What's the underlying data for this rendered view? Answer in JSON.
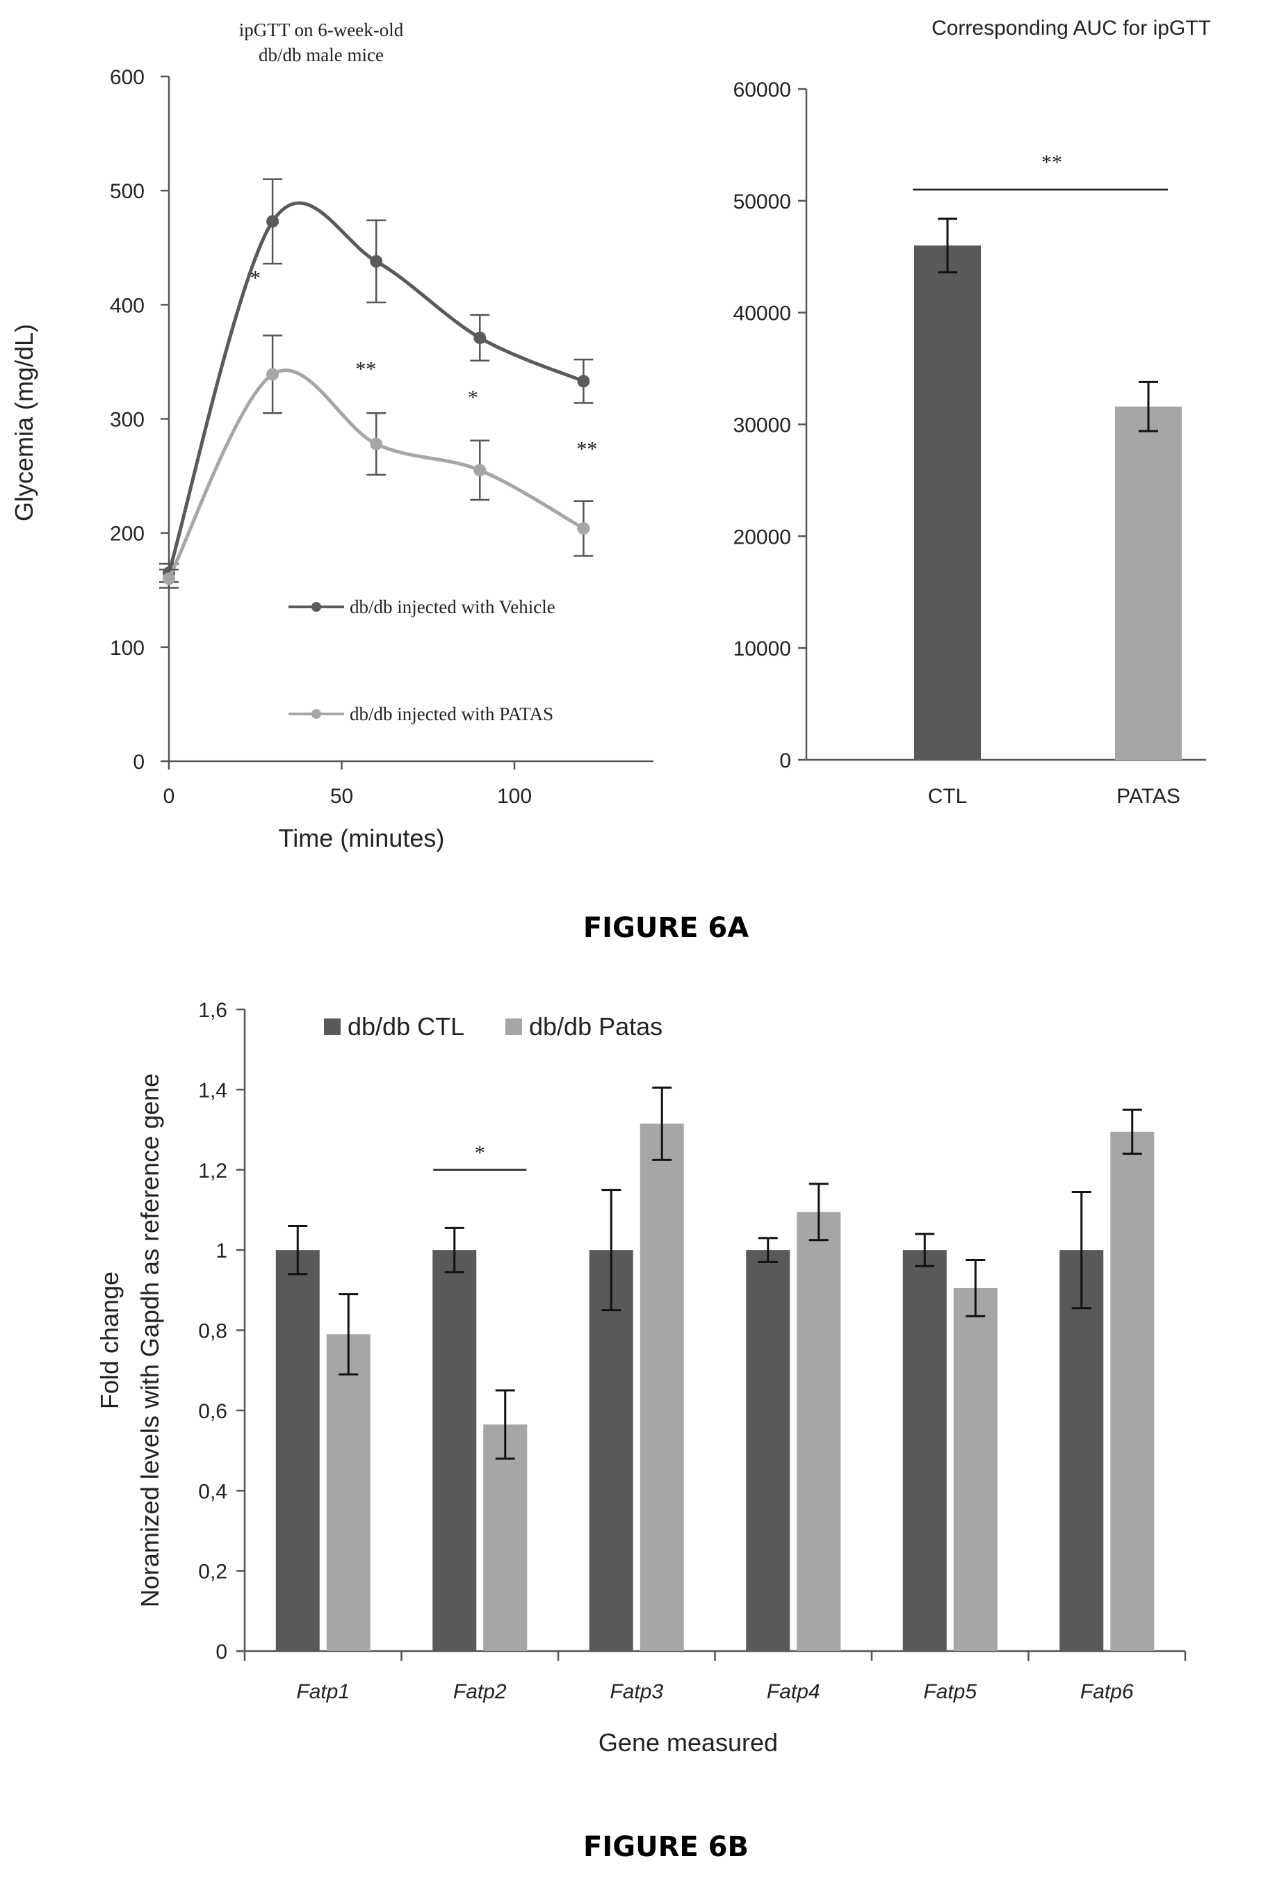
{
  "figure_labels": {
    "a": "FIGURE 6A",
    "b": "FIGURE 6B"
  },
  "chart_data": [
    {
      "type": "line",
      "title_line1": "ipGTT on 6-week-old",
      "title_line2": "db/db male mice",
      "xlabel": "Time (minutes)",
      "ylabel": "Glycemia (mg/dL)",
      "xlim": [
        0,
        140
      ],
      "ylim": [
        0,
        600
      ],
      "x_ticks": [
        0,
        50,
        100
      ],
      "y_ticks": [
        0,
        100,
        200,
        300,
        400,
        500,
        600
      ],
      "x": [
        0,
        30,
        60,
        90,
        120
      ],
      "series": [
        {
          "name": "db/db  injected with Vehicle",
          "color": "#5a5a5a",
          "values": [
            165,
            473,
            438,
            371,
            333
          ],
          "err": [
            8,
            37,
            36,
            20,
            19
          ]
        },
        {
          "name": "db/db  injected with PATAS",
          "color": "#a6a6a6",
          "values": [
            160,
            339,
            278,
            255,
            204
          ],
          "err": [
            8,
            34,
            27,
            26,
            24
          ]
        }
      ],
      "significance": [
        {
          "x": 25,
          "y": 425,
          "label": "*"
        },
        {
          "x": 57,
          "y": 345,
          "label": "**"
        },
        {
          "x": 88,
          "y": 320,
          "label": "*"
        },
        {
          "x": 121,
          "y": 275,
          "label": "**"
        }
      ],
      "legend_placement": "bottom-center",
      "grid": false
    },
    {
      "type": "bar",
      "title": "Corresponding  AUC for ipGTT",
      "categories": [
        "CTL",
        "PATAS"
      ],
      "values": [
        46000,
        31600
      ],
      "err": [
        2400,
        2200
      ],
      "colors": [
        "#595959",
        "#a6a6a6"
      ],
      "ylim": [
        0,
        60000
      ],
      "y_ticks": [
        0,
        10000,
        20000,
        30000,
        40000,
        50000,
        60000
      ],
      "significance": {
        "label": "**",
        "y": 51000
      },
      "grid": false
    },
    {
      "type": "bar",
      "xlabel": "Gene measured",
      "ylabel_line1": "Fold change",
      "ylabel_line2": "Noramized levels with Gapdh as reference gene",
      "categories": [
        "Fatp1",
        "Fatp2",
        "Fatp3",
        "Fatp4",
        "Fatp5",
        "Fatp6"
      ],
      "ylim": [
        0,
        1.6
      ],
      "y_ticks": [
        "0",
        "0,2",
        "0,4",
        "0,6",
        "0,8",
        "1",
        "1,2",
        "1,4",
        "1,6"
      ],
      "series": [
        {
          "name": "db/db CTL",
          "color": "#595959",
          "values": [
            1.0,
            1.0,
            1.0,
            1.0,
            1.0,
            1.0
          ],
          "err": [
            0.06,
            0.055,
            0.15,
            0.03,
            0.04,
            0.145
          ]
        },
        {
          "name": "db/db Patas",
          "color": "#a6a6a6",
          "values": [
            0.79,
            0.565,
            1.315,
            1.095,
            0.905,
            1.295
          ],
          "err": [
            0.1,
            0.085,
            0.09,
            0.07,
            0.07,
            0.055
          ]
        }
      ],
      "significance": {
        "category": "Fatp2",
        "label": "*"
      },
      "legend_placement": "top-left",
      "grid": false
    }
  ]
}
